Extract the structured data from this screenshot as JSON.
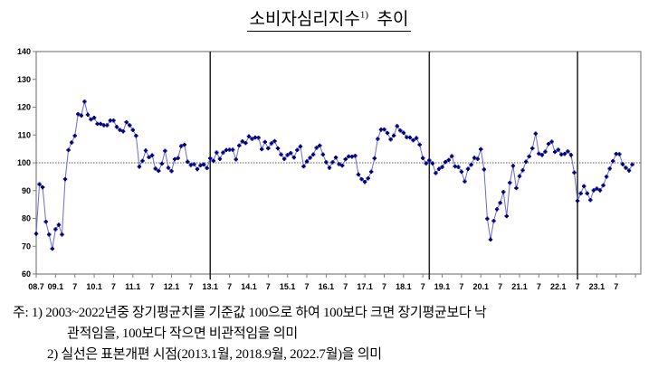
{
  "title": {
    "text": "소비자심리지수",
    "superscript": "1)",
    "suffix": "추이"
  },
  "chart_data": {
    "type": "line",
    "title": "소비자심리지수 추이",
    "xlabel": "",
    "ylabel": "",
    "ylim": [
      60,
      140
    ],
    "yticks": [
      60,
      70,
      80,
      90,
      100,
      110,
      120,
      130,
      140
    ],
    "reference_line": {
      "value": 100,
      "style": "dotted"
    },
    "structural_break_lines": [
      "2013.1",
      "2018.9",
      "2022.7"
    ],
    "xtick_labels": [
      "08.7",
      "09.1",
      "7",
      "10.1",
      "7",
      "11.1",
      "7",
      "12.1",
      "7",
      "13.1",
      "7",
      "14.1",
      "7",
      "15.1",
      "7",
      "16.1",
      "7",
      "17.1",
      "7",
      "18.1",
      "7",
      "19.1",
      "7",
      "20.1",
      "7",
      "21.1",
      "7",
      "22.1",
      "7",
      "23.1",
      "7"
    ],
    "grid": false,
    "colors": {
      "line": "#6b6bd0",
      "marker": "#00007f",
      "axis": "#808080"
    },
    "x": [
      "2008.7",
      "2008.8",
      "2008.9",
      "2008.10",
      "2008.11",
      "2008.12",
      "2009.1",
      "2009.2",
      "2009.3",
      "2009.4",
      "2009.5",
      "2009.6",
      "2009.7",
      "2009.8",
      "2009.9",
      "2009.10",
      "2009.11",
      "2009.12",
      "2010.1",
      "2010.2",
      "2010.3",
      "2010.4",
      "2010.5",
      "2010.6",
      "2010.7",
      "2010.8",
      "2010.9",
      "2010.10",
      "2010.11",
      "2010.12",
      "2011.1",
      "2011.2",
      "2011.3",
      "2011.4",
      "2011.5",
      "2011.6",
      "2011.7",
      "2011.8",
      "2011.9",
      "2011.10",
      "2011.11",
      "2011.12",
      "2012.1",
      "2012.2",
      "2012.3",
      "2012.4",
      "2012.5",
      "2012.6",
      "2012.7",
      "2012.8",
      "2012.9",
      "2012.10",
      "2012.11",
      "2012.12",
      "2013.1",
      "2013.2",
      "2013.3",
      "2013.4",
      "2013.5",
      "2013.6",
      "2013.7",
      "2013.8",
      "2013.9",
      "2013.10",
      "2013.11",
      "2013.12",
      "2014.1",
      "2014.2",
      "2014.3",
      "2014.4",
      "2014.5",
      "2014.6",
      "2014.7",
      "2014.8",
      "2014.9",
      "2014.10",
      "2014.11",
      "2014.12",
      "2015.1",
      "2015.2",
      "2015.3",
      "2015.4",
      "2015.5",
      "2015.6",
      "2015.7",
      "2015.8",
      "2015.9",
      "2015.10",
      "2015.11",
      "2015.12",
      "2016.1",
      "2016.2",
      "2016.3",
      "2016.4",
      "2016.5",
      "2016.6",
      "2016.7",
      "2016.8",
      "2016.9",
      "2016.10",
      "2016.11",
      "2016.12",
      "2017.1",
      "2017.2",
      "2017.3",
      "2017.4",
      "2017.5",
      "2017.6",
      "2017.7",
      "2017.8",
      "2017.9",
      "2017.10",
      "2017.11",
      "2017.12",
      "2018.1",
      "2018.2",
      "2018.3",
      "2018.4",
      "2018.5",
      "2018.6",
      "2018.7",
      "2018.8",
      "2018.9",
      "2018.10",
      "2018.11",
      "2018.12",
      "2019.1",
      "2019.2",
      "2019.3",
      "2019.4",
      "2019.5",
      "2019.6",
      "2019.7",
      "2019.8",
      "2019.9",
      "2019.10",
      "2019.11",
      "2019.12",
      "2020.1",
      "2020.2",
      "2020.3",
      "2020.4",
      "2020.5",
      "2020.6",
      "2020.7",
      "2020.8",
      "2020.9",
      "2020.10",
      "2020.11",
      "2020.12",
      "2021.1",
      "2021.2",
      "2021.3",
      "2021.4",
      "2021.5",
      "2021.6",
      "2021.7",
      "2021.8",
      "2021.9",
      "2021.10",
      "2021.11",
      "2021.12",
      "2022.1",
      "2022.2",
      "2022.3",
      "2022.4",
      "2022.5",
      "2022.6",
      "2022.7",
      "2022.8",
      "2022.9",
      "2022.10",
      "2022.11",
      "2022.12",
      "2023.1",
      "2023.2",
      "2023.3",
      "2023.4",
      "2023.5",
      "2023.6",
      "2023.7",
      "2023.8",
      "2023.9",
      "2023.10",
      "2023.11",
      "2023.12"
    ],
    "values": [
      74.5,
      92.3,
      91.2,
      78.8,
      74.2,
      69.1,
      76.1,
      77.7,
      74.2,
      94.1,
      104.6,
      107.3,
      109.7,
      117.5,
      117.0,
      122.0,
      117.3,
      115.6,
      116.2,
      114.0,
      114.0,
      113.5,
      113.5,
      115.2,
      115.2,
      112.9,
      111.8,
      111.3,
      114.6,
      113.5,
      111.8,
      109.7,
      98.6,
      100.7,
      104.4,
      102.0,
      102.7,
      97.9,
      97.1,
      99.7,
      104.3,
      98.2,
      97.0,
      101.3,
      101.7,
      106.0,
      106.5,
      100.4,
      99.2,
      99.5,
      97.7,
      99.1,
      99.4,
      98.1,
      101.6,
      100.7,
      103.7,
      101.4,
      103.7,
      104.6,
      104.7,
      104.7,
      101.2,
      106.2,
      107.7,
      107.1,
      109.5,
      108.6,
      109.1,
      109.0,
      104.9,
      107.5,
      105.2,
      107.0,
      107.8,
      105.2,
      103.0,
      101.4,
      102.8,
      103.5,
      101.9,
      104.6,
      105.9,
      98.7,
      100.5,
      101.8,
      103.0,
      105.4,
      106.2,
      103.0,
      100.2,
      98.2,
      100.2,
      101.9,
      99.5,
      99.0,
      101.3,
      102.3,
      102.2,
      102.5,
      95.8,
      94.1,
      93.1,
      94.4,
      96.8,
      101.6,
      108.6,
      111.9,
      112.0,
      110.7,
      108.4,
      109.8,
      113.2,
      111.6,
      110.8,
      109.2,
      109.1,
      108.1,
      108.9,
      106.5,
      101.7,
      99.8,
      100.9,
      99.8,
      96.3,
      97.8,
      98.5,
      100.3,
      101.0,
      102.4,
      98.7,
      98.5,
      96.8,
      93.3,
      97.8,
      99.3,
      101.8,
      101.4,
      104.9,
      97.6,
      79.9,
      72.4,
      79.1,
      83.3,
      85.6,
      89.5,
      80.8,
      92.8,
      98.9,
      90.9,
      95.2,
      97.3,
      100.4,
      102.3,
      105.2,
      110.5,
      103.3,
      102.8,
      104.0,
      106.8,
      107.6,
      103.9,
      104.7,
      103.0,
      103.2,
      104.1,
      102.8,
      96.5,
      86.3,
      89.0,
      91.6,
      89.0,
      86.6,
      90.1,
      90.7,
      90.1,
      91.9,
      95.0,
      97.9,
      100.6,
      103.2,
      103.1,
      99.5,
      98.2,
      97.2,
      99.4
    ]
  },
  "notes": {
    "prefix": "주:",
    "note1_num": "1)",
    "note1_line1": "2003~2022년중 장기평균치를 기준값 100으로 하여 100보다 크면 장기평균보다 낙",
    "note1_line2": "관적임을, 100보다 작으면 비관적임을 의미",
    "note2_num": "2)",
    "note2": "실선은 표본개편 시점(2013.1월, 2018.9월, 2022.7월)을 의미"
  }
}
